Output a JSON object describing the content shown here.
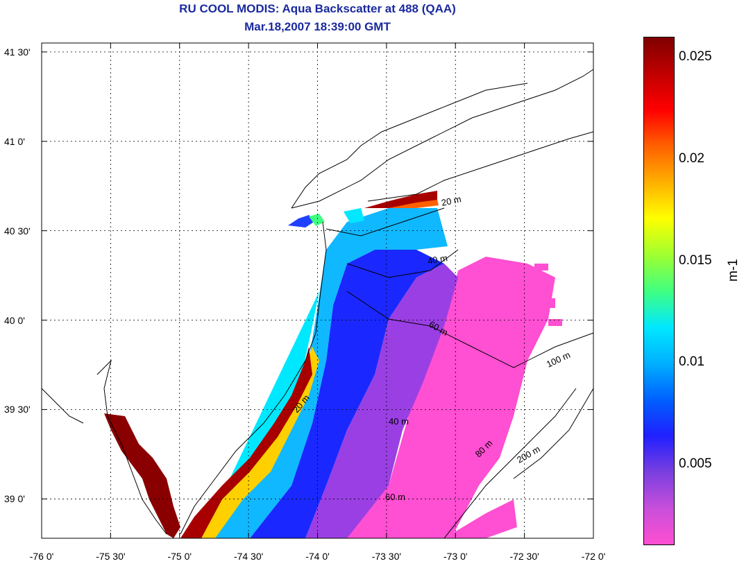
{
  "title": {
    "line1": "RU COOL MODIS: Aqua Backscatter at 488 (QAA)",
    "line2": "Mar.18,2007 18:39:00 GMT"
  },
  "map": {
    "lat_ticks": [
      "41 30'",
      "41 0'",
      "40 30'",
      "40 0'",
      "39 30'",
      "39 0'"
    ],
    "lon_ticks": [
      "-76 0'",
      "-75 30'",
      "-75 0'",
      "-74 30'",
      "-74 0'",
      "-73 30'",
      "-73 0'",
      "-72 30'",
      "-72 0'"
    ],
    "lat_range": [
      38.78,
      41.55
    ],
    "lon_range": [
      -76.0,
      -72.0
    ],
    "isobath_labels": [
      "20 m",
      "40 m",
      "60 m",
      "20 m",
      "40 m",
      "60 m",
      "80 m",
      "100 m",
      "200 m"
    ]
  },
  "colorbar": {
    "ticks": [
      "0.025",
      "0.02",
      "0.015",
      "0.01",
      "0.005"
    ],
    "unit": "m-1",
    "range": [
      0.001,
      0.026
    ],
    "colors": [
      "#ff4fd2",
      "#c84fdb",
      "#7a3fe0",
      "#2020ff",
      "#0060ff",
      "#00b0ff",
      "#00e8ff",
      "#40ff80",
      "#a0ff30",
      "#ffff00",
      "#ffb000",
      "#ff6000",
      "#ff0000",
      "#c00000",
      "#800000"
    ]
  }
}
